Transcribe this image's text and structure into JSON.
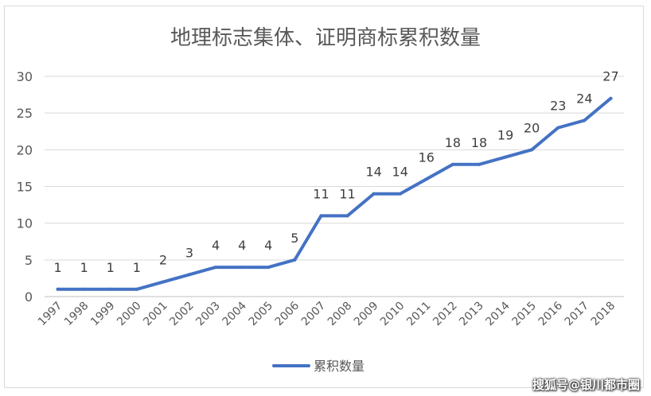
{
  "chart_data": {
    "type": "line",
    "title": "地理标志集体、证明商标累积数量",
    "categories": [
      "1997",
      "1998",
      "1999",
      "2000",
      "2001",
      "2002",
      "2003",
      "2004",
      "2005",
      "2006",
      "2007",
      "2008",
      "2009",
      "2010",
      "2011",
      "2012",
      "2013",
      "2014",
      "2015",
      "2016",
      "2017",
      "2018"
    ],
    "series": [
      {
        "name": "累积数量",
        "values": [
          1,
          1,
          1,
          1,
          2,
          3,
          4,
          4,
          4,
          5,
          11,
          11,
          14,
          14,
          16,
          18,
          18,
          19,
          20,
          23,
          24,
          27
        ],
        "color": "#4472c4"
      }
    ],
    "ylim": [
      0,
      30
    ],
    "yticks": [
      0,
      5,
      10,
      15,
      20,
      25,
      30
    ],
    "xlabel": "",
    "ylabel": "",
    "grid": true,
    "legend_position": "bottom"
  },
  "watermark": "搜狐号@银川都市圈"
}
